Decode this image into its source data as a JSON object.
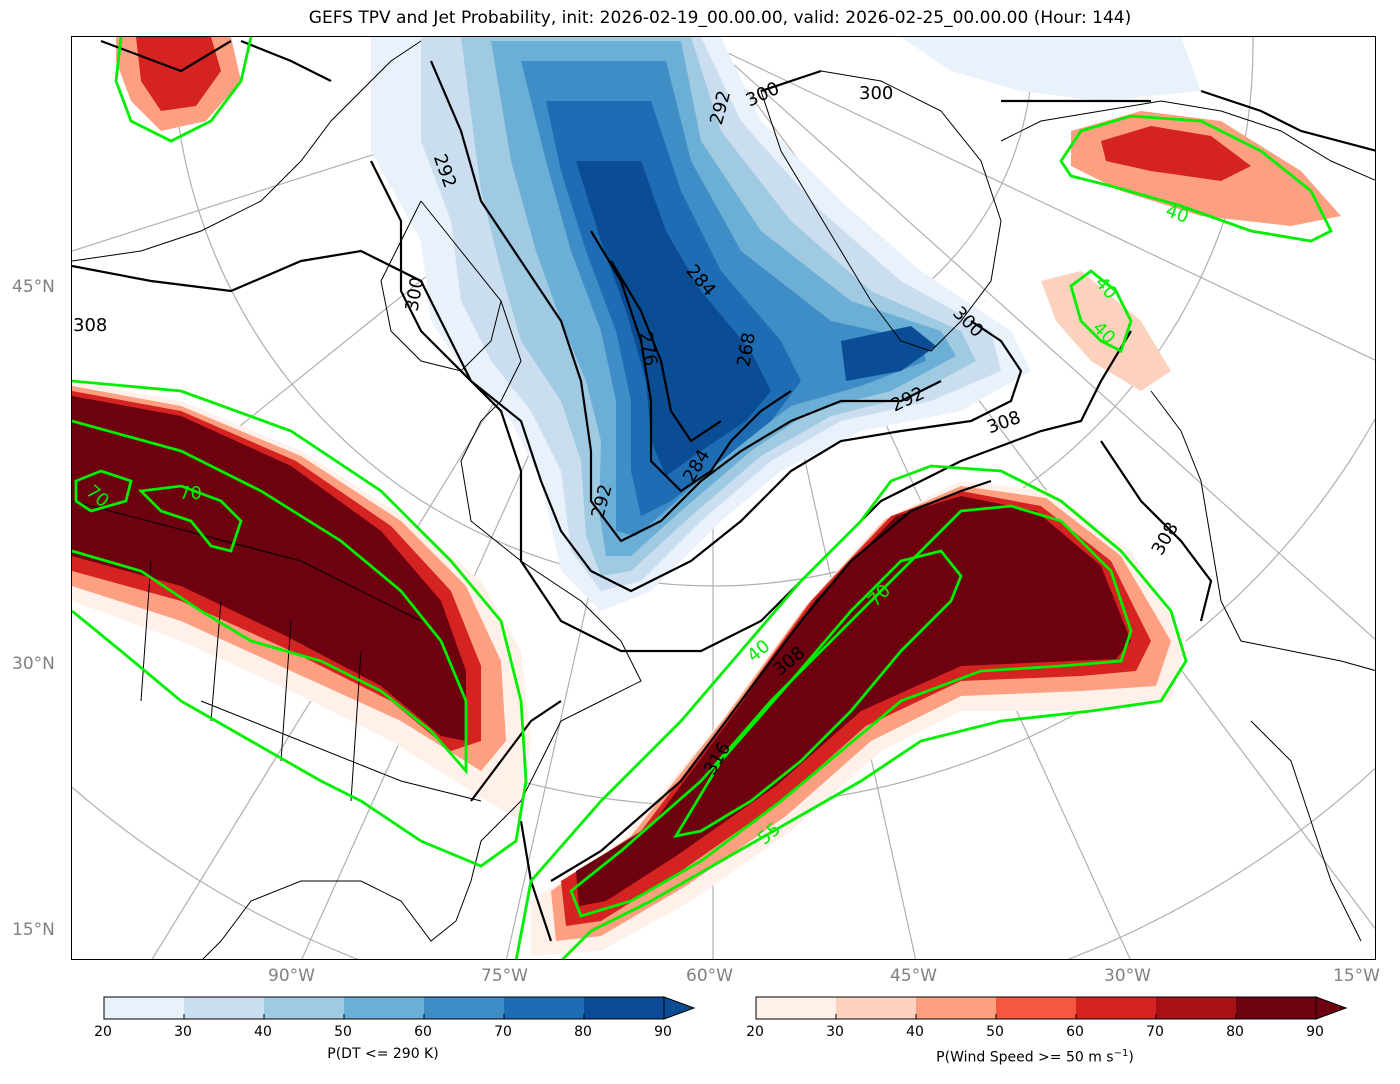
{
  "title": "GEFS TPV and Jet Probability, init: 2026-02-19_00.00.00, valid: 2026-02-25_00.00.00 (Hour: 144)",
  "latitude_labels": [
    "45°N",
    "30°N",
    "15°N"
  ],
  "longitude_labels": [
    "90°W",
    "75°W",
    "60°W",
    "45°W",
    "30°W",
    "15°W"
  ],
  "contour_labels": {
    "theta_black": [
      "308",
      "300",
      "292",
      "292",
      "300",
      "300",
      "284",
      "276",
      "268",
      "292",
      "284",
      "300",
      "292",
      "308",
      "308",
      "308",
      "316"
    ],
    "jet_green": [
      "70",
      "70",
      "40",
      "40",
      "40",
      "70",
      "40",
      "55"
    ]
  },
  "colorbars": {
    "tpv": {
      "label": "P(DT <= 290 K)",
      "ticks": [
        "20",
        "30",
        "40",
        "50",
        "60",
        "70",
        "80",
        "90"
      ],
      "colors": [
        "#e9f2fb",
        "#cadef0",
        "#a0cae2",
        "#6baed6",
        "#3f8dc6",
        "#1e6cb3",
        "#0a4d95"
      ]
    },
    "jet": {
      "label": "P(Wind Speed >= 50 m s",
      "label_sup": "−1",
      "label_end": ")",
      "ticks": [
        "20",
        "30",
        "40",
        "50",
        "60",
        "70",
        "80",
        "90"
      ],
      "colors": [
        "#fff0ea",
        "#fcd2bf",
        "#fca081",
        "#f4593f",
        "#d52322",
        "#a91016",
        "#6d0110"
      ]
    }
  },
  "colors": {
    "jet_contour": "#00ee00",
    "theta_contour": "#000000",
    "graticule": "#b0b0b0"
  }
}
